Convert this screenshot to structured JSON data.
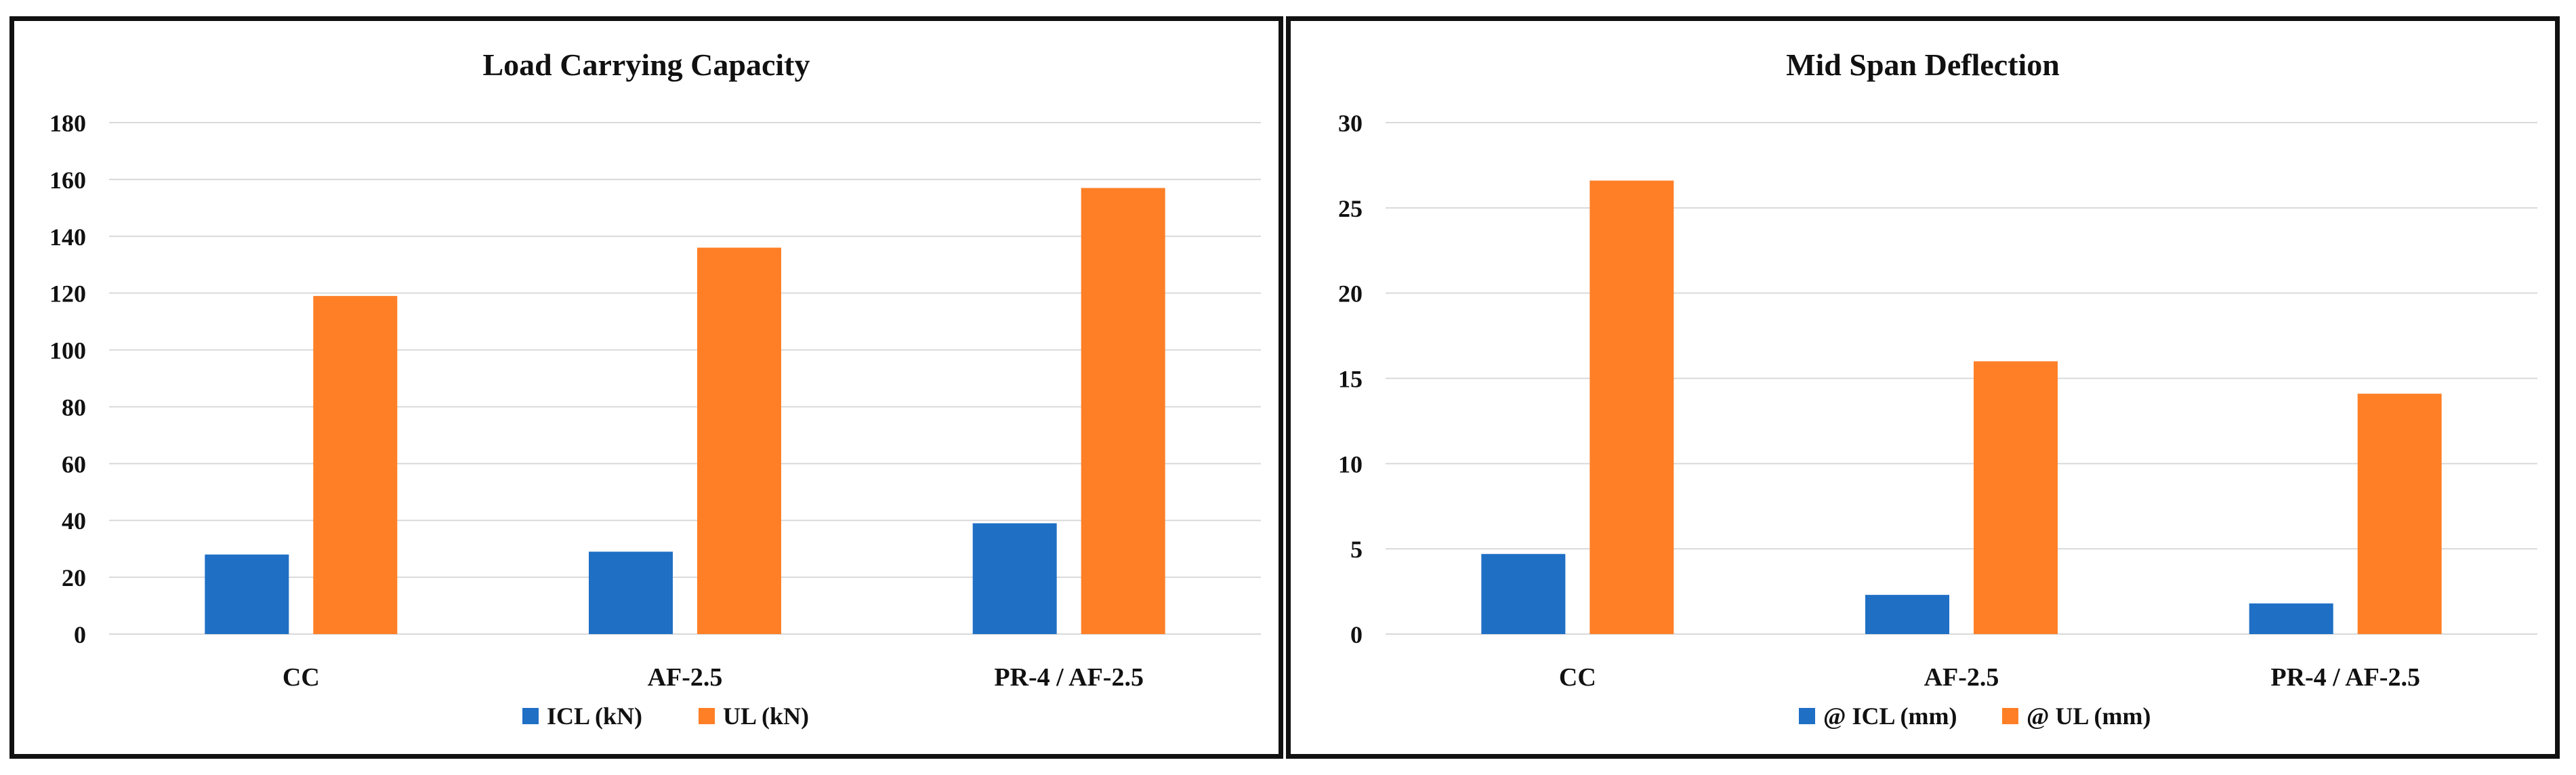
{
  "chart_data": [
    {
      "type": "bar",
      "title": "Load Carrying Capacity",
      "categories": [
        "CC",
        "AF-2.5",
        "PR-4 / AF-2.5"
      ],
      "series": [
        {
          "name": "ICL (kN)",
          "color": "#1F6FC5",
          "values": [
            28,
            29,
            39
          ]
        },
        {
          "name": "UL (kN)",
          "color": "#FF7F27",
          "values": [
            119,
            136,
            157
          ]
        }
      ],
      "ylim": [
        0,
        180
      ],
      "yticks": [
        0,
        20,
        40,
        60,
        80,
        100,
        120,
        140,
        160,
        180
      ],
      "grid": true,
      "legend": "bottom"
    },
    {
      "type": "bar",
      "title": "Mid Span Deflection",
      "categories": [
        "CC",
        "AF-2.5",
        "PR-4 / AF-2.5"
      ],
      "series": [
        {
          "name": "@ ICL (mm)",
          "color": "#1F6FC5",
          "values": [
            4.7,
            2.3,
            1.8
          ]
        },
        {
          "name": "@ UL (mm)",
          "color": "#FF7F27",
          "values": [
            26.6,
            16.0,
            14.1
          ]
        }
      ],
      "ylim": [
        0,
        30
      ],
      "yticks": [
        0,
        5,
        10,
        15,
        20,
        25,
        30
      ],
      "grid": true,
      "legend": "bottom"
    }
  ]
}
